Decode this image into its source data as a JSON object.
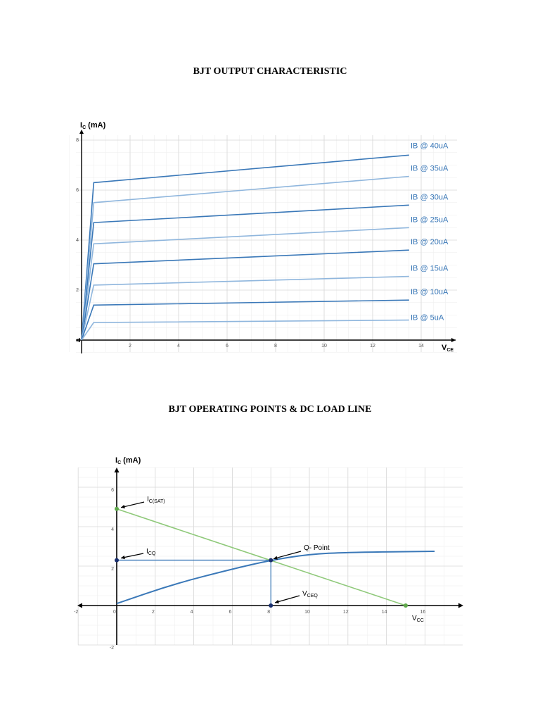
{
  "page": {
    "title1": "BJT OUTPUT CHARACTERISTIC",
    "title2": "BJT OPERATING POINTS & DC LOAD LINE"
  },
  "colors": {
    "curve": "#3a78b8",
    "curve_light": "#8fb6dd",
    "load_line": "#8fc97a",
    "point": "#1a2f6e",
    "grid": "#d8d8d8",
    "grid_minor": "#eeeeee"
  },
  "chart_data": [
    {
      "type": "line",
      "title": "BJT OUTPUT CHARACTERISTIC",
      "ylabel": {
        "main": "I",
        "sub": "C",
        "rest": " (mA)"
      },
      "xlabel": {
        "main": "V",
        "sub": "CE"
      },
      "xlim": [
        0,
        15.4
      ],
      "ylim": [
        0,
        8.2
      ],
      "xticks": [
        "2",
        "4",
        "6",
        "8",
        "10",
        "12",
        "14"
      ],
      "yticks": [
        "2",
        "4",
        "6",
        "8"
      ],
      "origin_label": "0",
      "grid": true,
      "series": [
        {
          "name": "IB @ 40uA",
          "points": [
            [
              0,
              0
            ],
            [
              0.5,
              6.3
            ],
            [
              13.5,
              7.4
            ]
          ]
        },
        {
          "name": "IB @ 35uA",
          "points": [
            [
              0,
              0
            ],
            [
              0.5,
              5.5
            ],
            [
              13.5,
              6.55
            ]
          ]
        },
        {
          "name": "IB @ 30uA",
          "points": [
            [
              0,
              0
            ],
            [
              0.5,
              4.7
            ],
            [
              13.5,
              5.4
            ]
          ]
        },
        {
          "name": "IB @ 25uA",
          "points": [
            [
              0,
              0
            ],
            [
              0.5,
              3.85
            ],
            [
              13.5,
              4.5
            ]
          ]
        },
        {
          "name": "IB @ 20uA",
          "points": [
            [
              0,
              0
            ],
            [
              0.5,
              3.05
            ],
            [
              13.5,
              3.6
            ]
          ]
        },
        {
          "name": "IB @ 15uA",
          "points": [
            [
              0,
              0
            ],
            [
              0.5,
              2.2
            ],
            [
              13.5,
              2.55
            ]
          ]
        },
        {
          "name": "IB @ 10uA",
          "points": [
            [
              0,
              0
            ],
            [
              0.5,
              1.4
            ],
            [
              13.5,
              1.6
            ]
          ]
        },
        {
          "name": "IB @ 5uA",
          "points": [
            [
              0,
              0
            ],
            [
              0.5,
              0.7
            ],
            [
              13.5,
              0.8
            ]
          ]
        }
      ]
    },
    {
      "type": "line",
      "title": "BJT OPERATING POINTS & DC LOAD LINE",
      "ylabel": {
        "main": "I",
        "sub": "C",
        "rest": " (mA)"
      },
      "xlim": [
        -2,
        18
      ],
      "ylim": [
        -2,
        6.5
      ],
      "xticks": [
        "-2",
        "0",
        "2",
        "4",
        "6",
        "8",
        "10",
        "12",
        "14",
        "16"
      ],
      "yticks": [
        "-2",
        "2",
        "4",
        "6"
      ],
      "grid": true,
      "load_line": {
        "points": [
          [
            0,
            4.9
          ],
          [
            15,
            0
          ]
        ]
      },
      "characteristic": {
        "points": [
          [
            0,
            0.1
          ],
          [
            3,
            1.1
          ],
          [
            6,
            1.85
          ],
          [
            8,
            2.3
          ],
          [
            10,
            2.6
          ],
          [
            12,
            2.7
          ],
          [
            16.5,
            2.75
          ]
        ]
      },
      "icq_line": {
        "points": [
          [
            0,
            2.3
          ],
          [
            8,
            2.3
          ]
        ]
      },
      "vceq_line": {
        "points": [
          [
            8,
            2.3
          ],
          [
            8,
            0
          ]
        ]
      },
      "points": [
        {
          "name": "I_C(SAT)",
          "x": 0,
          "y": 4.9,
          "color": "load"
        },
        {
          "name": "I_CQ",
          "x": 0,
          "y": 2.3,
          "color": "point"
        },
        {
          "name": "Q-Point",
          "x": 8,
          "y": 2.3,
          "color": "point"
        },
        {
          "name": "V_CEQ",
          "x": 8,
          "y": 0,
          "color": "point"
        },
        {
          "name": "V_CC",
          "x": 15,
          "y": 0,
          "color": "load"
        }
      ],
      "annotations": {
        "icsat": {
          "main": "I",
          "sub": "C(SAT)"
        },
        "icq": {
          "main": "I",
          "sub": "CQ"
        },
        "qpoint": "Q- Point",
        "vceq": {
          "main": "V",
          "sub": "CEQ"
        },
        "vcc": {
          "main": "V",
          "sub": "CC"
        }
      }
    }
  ]
}
